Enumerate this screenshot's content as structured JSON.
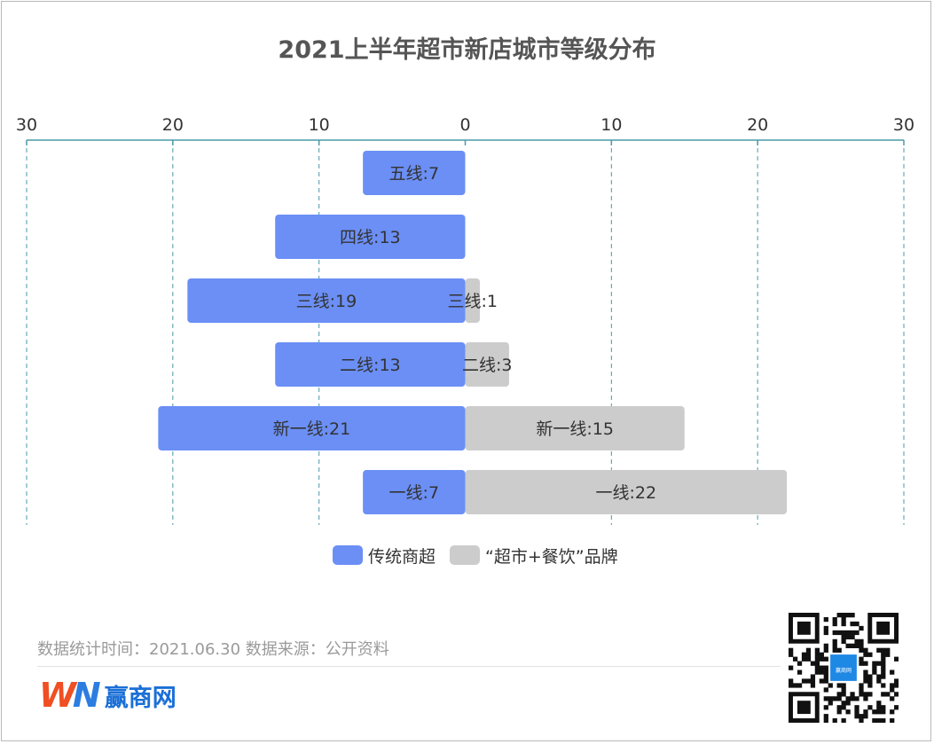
{
  "colors": {
    "series_a": "#6b8ff5",
    "series_b": "#cccccc",
    "axis": "#4a9aa8",
    "grid": "#4a9aa8",
    "label": "#333333"
  },
  "chart_data": {
    "type": "bar",
    "orientation": "horizontal-butterfly",
    "title": "2021上半年超市新店城市等级分布",
    "categories": [
      "五线",
      "四线",
      "三线",
      "二线",
      "新一线",
      "一线"
    ],
    "xlim": [
      -30,
      30
    ],
    "tick_values": [
      -30,
      -20,
      -10,
      0,
      10,
      20,
      30
    ],
    "tick_labels": [
      "30",
      "20",
      "10",
      "0",
      "10",
      "20",
      "30"
    ],
    "grid": true,
    "legend_position": "bottom-center",
    "series": [
      {
        "name": "传统商超",
        "side": "left",
        "values": [
          7,
          13,
          19,
          13,
          21,
          7
        ],
        "labels": [
          "五线:7",
          "四线:13",
          "三线:19",
          "二线:13",
          "新一线:21",
          "一线:7"
        ]
      },
      {
        "name": "“超市+餐饮”品牌",
        "side": "right",
        "values": [
          null,
          null,
          1,
          3,
          15,
          22
        ],
        "labels": [
          "",
          "",
          "三线:1",
          "二线:3",
          "新一线:15",
          "一线:22"
        ]
      }
    ]
  },
  "footer": {
    "source_text": "数据统计时间：2021.06.30 数据来源：公开资料",
    "logo_mark_w": "W",
    "logo_mark_n": "N",
    "logo_text": "赢商网",
    "qr_center_text": "赢商网"
  }
}
